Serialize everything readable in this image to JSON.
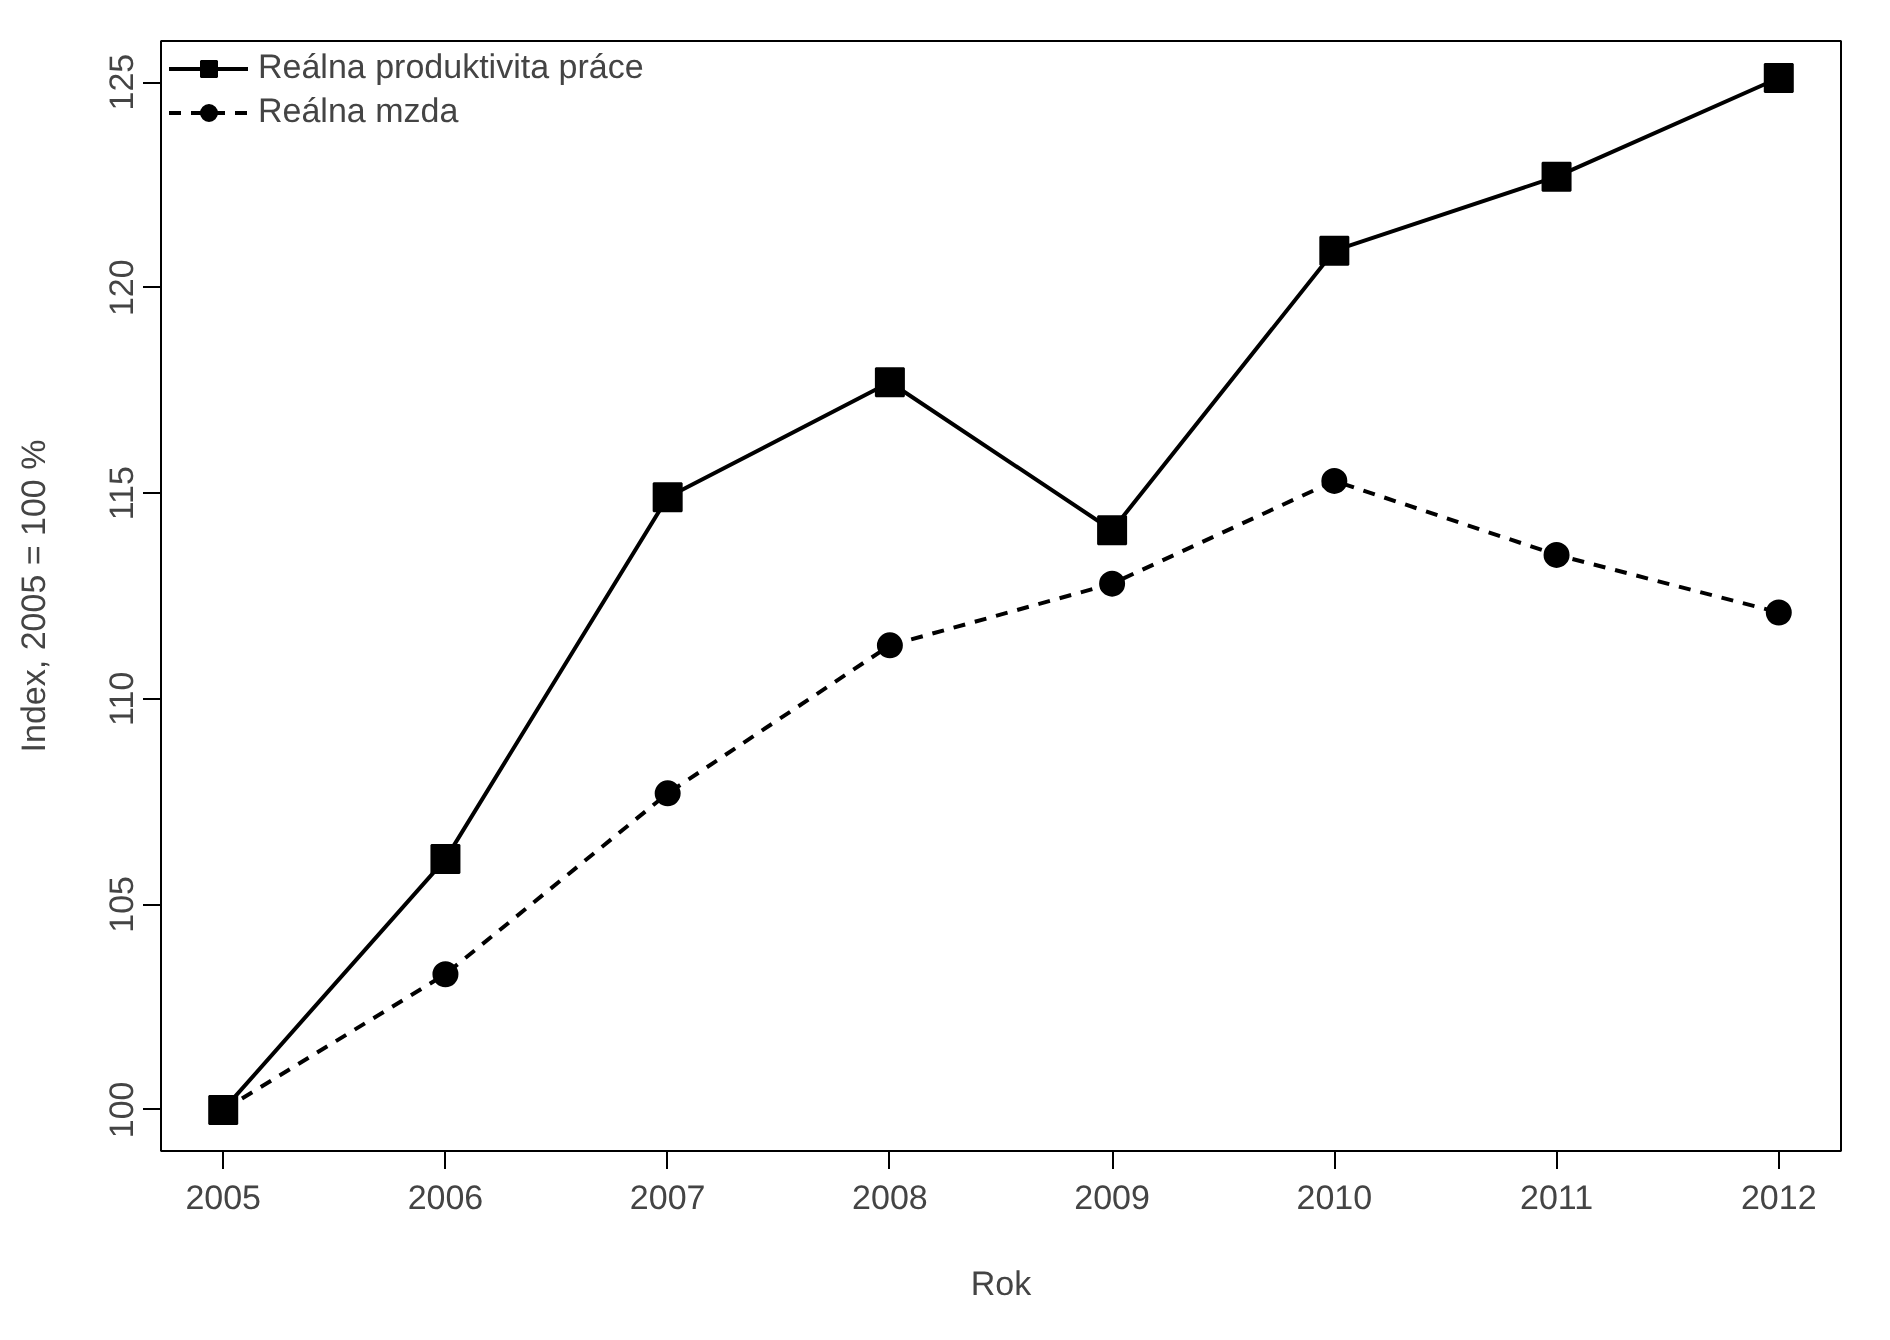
{
  "chart_data": {
    "type": "line",
    "xlabel": "Rok",
    "ylabel": "Index, 2005 = 100 %",
    "x": [
      2005,
      2006,
      2007,
      2008,
      2009,
      2010,
      2011,
      2012
    ],
    "series": [
      {
        "name": "Reálna produktivita práce",
        "color": "#000000",
        "marker": "square",
        "line_style": "solid",
        "values": [
          100,
          106.1,
          114.9,
          117.7,
          114.1,
          120.9,
          122.7,
          125.1
        ]
      },
      {
        "name": "Reálna mzda",
        "color": "#000000",
        "marker": "circle",
        "line_style": "dashed",
        "values": [
          100,
          103.3,
          107.7,
          111.3,
          112.8,
          115.3,
          113.5,
          112.1
        ]
      }
    ],
    "xlim": [
      2004.72,
      2012.28
    ],
    "ylim": [
      99,
      126
    ],
    "xticks": [
      2005,
      2006,
      2007,
      2008,
      2009,
      2010,
      2011,
      2012
    ],
    "yticks": [
      100,
      105,
      110,
      115,
      120,
      125
    ],
    "grid": false,
    "legend": "top left"
  }
}
